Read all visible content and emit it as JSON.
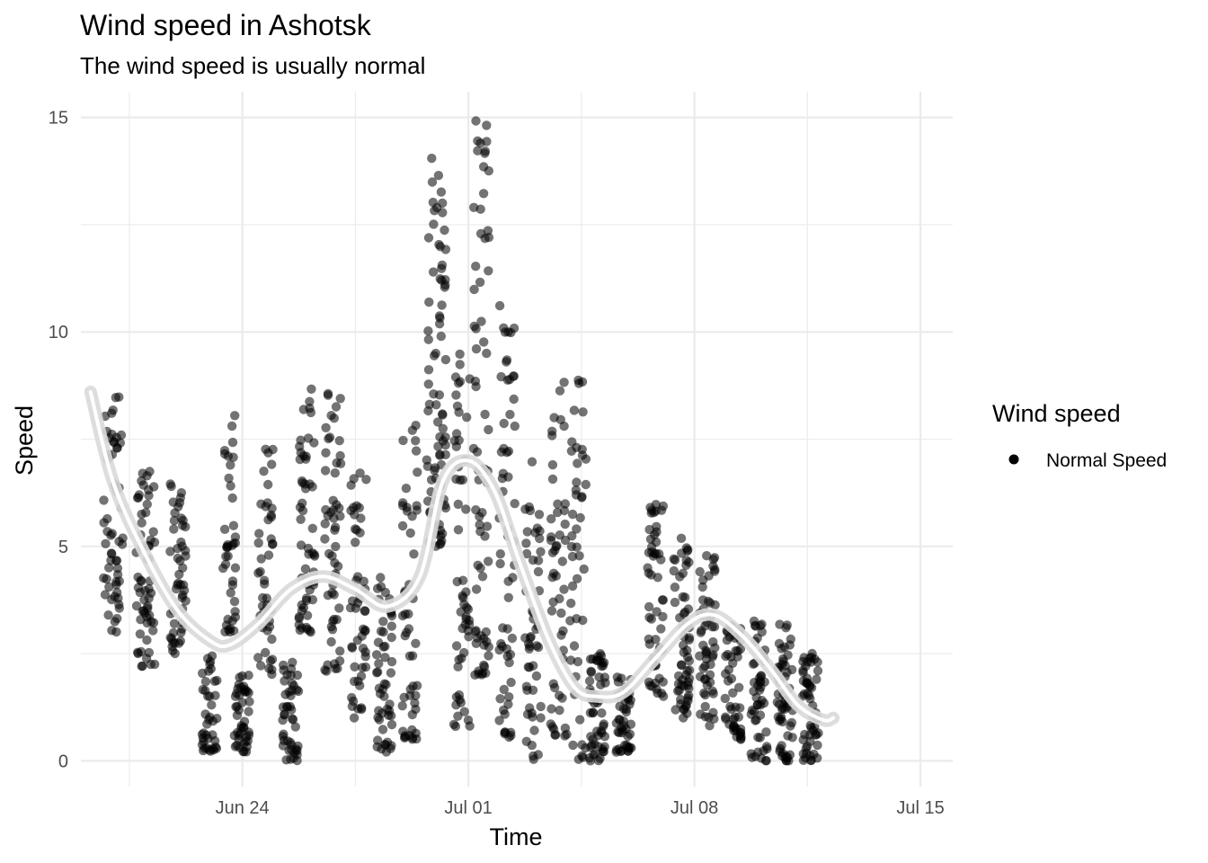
{
  "chart_data": {
    "type": "scatter",
    "title": "Wind speed in Ashotsk",
    "subtitle": "The wind speed is usually normal",
    "xlabel": "Time",
    "ylabel": "Speed",
    "x_axis_type": "date",
    "xlim": [
      "2024-06-19",
      "2024-07-16"
    ],
    "ylim": [
      -0.6,
      15.6
    ],
    "y_ticks": [
      0,
      5,
      10,
      15
    ],
    "x_ticks": [
      {
        "date": "2024-06-24",
        "label": "Jun 24"
      },
      {
        "date": "2024-07-01",
        "label": "Jul 01"
      },
      {
        "date": "2024-07-08",
        "label": "Jul 08"
      },
      {
        "date": "2024-07-15",
        "label": "Jul 15"
      }
    ],
    "grid": true,
    "legend": {
      "title": "Wind speed",
      "position": "right",
      "entries": [
        "Normal Speed"
      ]
    },
    "point_color": "#000000",
    "point_alpha": 0.55,
    "smooth_color": "#ffffff",
    "band_color": "#d9d9d9",
    "series": [
      {
        "name": "Normal Speed",
        "type": "scatter",
        "clusters": [
          {
            "x": "2024-06-20",
            "spread_days": 0.6,
            "y_min": 3.0,
            "y_max": 8.5,
            "n": 60
          },
          {
            "x": "2024-06-21",
            "spread_days": 0.6,
            "y_min": 2.2,
            "y_max": 6.8,
            "n": 60
          },
          {
            "x": "2024-06-22",
            "spread_days": 0.5,
            "y_min": 2.5,
            "y_max": 6.5,
            "n": 50
          },
          {
            "x": "2024-06-23",
            "spread_days": 0.5,
            "y_min": 0.2,
            "y_max": 2.5,
            "n": 40
          },
          {
            "x": "2024-06-23.6",
            "spread_days": 0.4,
            "y_min": 3.0,
            "y_max": 8.3,
            "n": 40
          },
          {
            "x": "2024-06-24",
            "spread_days": 0.5,
            "y_min": 0.2,
            "y_max": 2.0,
            "n": 45
          },
          {
            "x": "2024-06-24.7",
            "spread_days": 0.5,
            "y_min": 2.0,
            "y_max": 7.5,
            "n": 45
          },
          {
            "x": "2024-06-25.5",
            "spread_days": 0.5,
            "y_min": 0.0,
            "y_max": 2.5,
            "n": 45
          },
          {
            "x": "2024-06-26",
            "spread_days": 0.5,
            "y_min": 3.0,
            "y_max": 9.0,
            "n": 55
          },
          {
            "x": "2024-06-26.8",
            "spread_days": 0.5,
            "y_min": 2.0,
            "y_max": 8.8,
            "n": 55
          },
          {
            "x": "2024-06-27.6",
            "spread_days": 0.5,
            "y_min": 1.0,
            "y_max": 7.0,
            "n": 50
          },
          {
            "x": "2024-06-28.4",
            "spread_days": 0.5,
            "y_min": 0.2,
            "y_max": 4.5,
            "n": 50
          },
          {
            "x": "2024-06-29.2",
            "spread_days": 0.5,
            "y_min": 0.5,
            "y_max": 8.0,
            "n": 50
          },
          {
            "x": "2024-06-30",
            "spread_days": 0.6,
            "y_min": 5.0,
            "y_max": 14.1,
            "n": 80
          },
          {
            "x": "2024-06-30.8",
            "spread_days": 0.5,
            "y_min": 0.8,
            "y_max": 10.5,
            "n": 55
          },
          {
            "x": "2024-07-01.4",
            "spread_days": 0.5,
            "y_min": 2.0,
            "y_max": 15.0,
            "n": 70
          },
          {
            "x": "2024-07-02.2",
            "spread_days": 0.5,
            "y_min": 0.5,
            "y_max": 10.8,
            "n": 60
          },
          {
            "x": "2024-07-03",
            "spread_days": 0.5,
            "y_min": 0.0,
            "y_max": 7.0,
            "n": 50
          },
          {
            "x": "2024-07-03.8",
            "spread_days": 0.5,
            "y_min": 0.2,
            "y_max": 9.3,
            "n": 50
          },
          {
            "x": "2024-07-04.4",
            "spread_days": 0.5,
            "y_min": 0.0,
            "y_max": 8.9,
            "n": 45
          },
          {
            "x": "2024-07-05",
            "spread_days": 0.5,
            "y_min": 0.0,
            "y_max": 2.5,
            "n": 55
          },
          {
            "x": "2024-07-05.8",
            "spread_days": 0.5,
            "y_min": 0.2,
            "y_max": 2.0,
            "n": 45
          },
          {
            "x": "2024-07-06.8",
            "spread_days": 0.5,
            "y_min": 1.5,
            "y_max": 6.0,
            "n": 55
          },
          {
            "x": "2024-07-07.6",
            "spread_days": 0.5,
            "y_min": 1.0,
            "y_max": 5.5,
            "n": 60
          },
          {
            "x": "2024-07-08.4",
            "spread_days": 0.5,
            "y_min": 0.8,
            "y_max": 4.9,
            "n": 55
          },
          {
            "x": "2024-07-09.2",
            "spread_days": 0.5,
            "y_min": 0.5,
            "y_max": 3.3,
            "n": 50
          },
          {
            "x": "2024-07-10",
            "spread_days": 0.5,
            "y_min": 0.0,
            "y_max": 3.3,
            "n": 50
          },
          {
            "x": "2024-07-10.8",
            "spread_days": 0.5,
            "y_min": 0.0,
            "y_max": 3.2,
            "n": 55
          },
          {
            "x": "2024-07-11.6",
            "spread_days": 0.5,
            "y_min": 0.0,
            "y_max": 2.6,
            "n": 55
          }
        ]
      },
      {
        "name": "smooth",
        "type": "line",
        "x": [
          "2024-06-19.3",
          "2024-06-20",
          "2024-06-21",
          "2024-06-22",
          "2024-06-23",
          "2024-06-23.6",
          "2024-06-24.5",
          "2024-06-25.5",
          "2024-06-26.5",
          "2024-06-27.5",
          "2024-06-28.5",
          "2024-06-29.5",
          "2024-06-30.2",
          "2024-07-01",
          "2024-07-01.8",
          "2024-07-02.6",
          "2024-07-03.5",
          "2024-07-04.3",
          "2024-07-05",
          "2024-07-05.8",
          "2024-07-06.8",
          "2024-07-07.8",
          "2024-07-08.6",
          "2024-07-09.5",
          "2024-07-10.4",
          "2024-07-11.2",
          "2024-07-12",
          "2024-07-12.3"
        ],
        "y": [
          8.6,
          6.5,
          4.8,
          3.5,
          2.8,
          2.7,
          3.2,
          4.0,
          4.3,
          4.0,
          3.6,
          4.3,
          6.5,
          7.0,
          6.3,
          4.6,
          2.8,
          1.7,
          1.5,
          1.6,
          2.4,
          3.2,
          3.4,
          2.9,
          2.1,
          1.3,
          0.95,
          1.0
        ]
      }
    ]
  }
}
